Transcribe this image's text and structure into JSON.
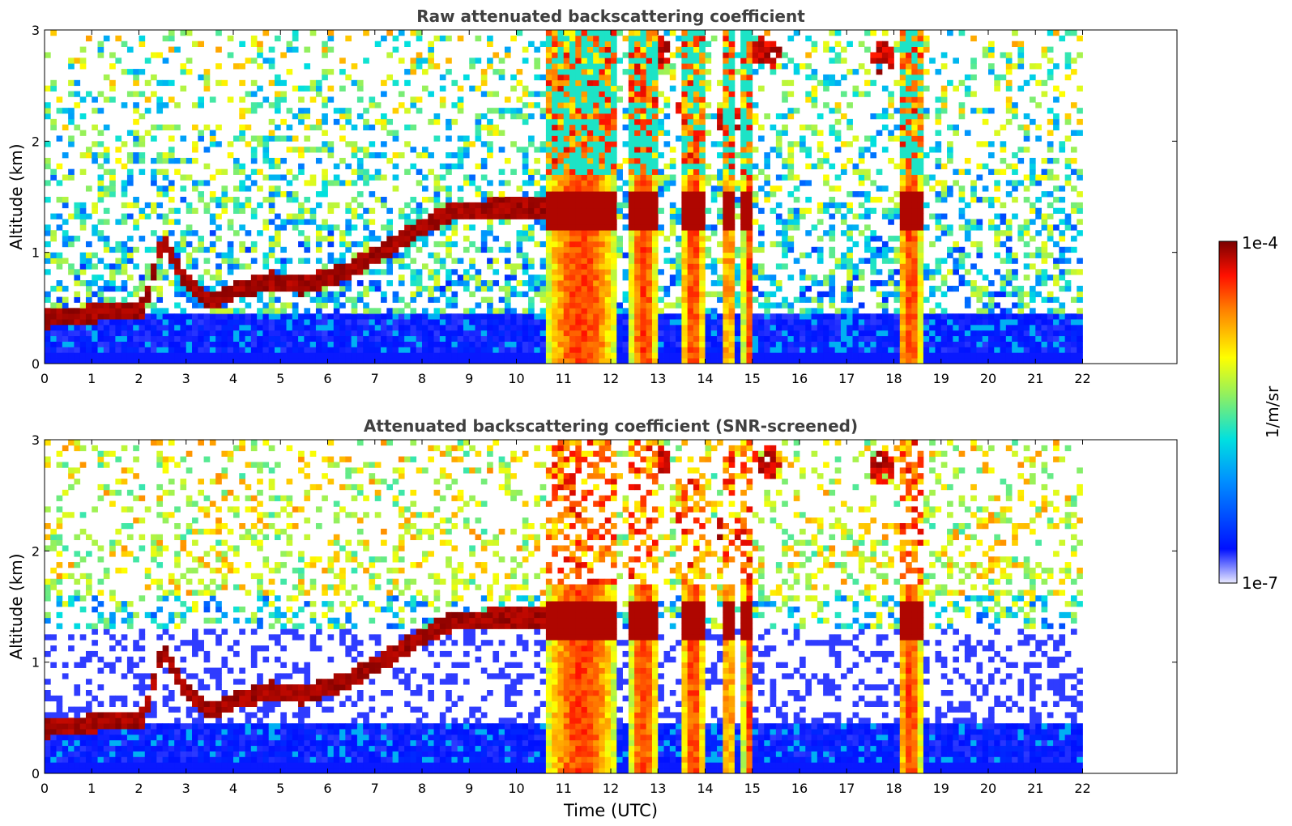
{
  "chart_data": [
    {
      "type": "heatmap",
      "title": "Raw attenuated backscattering coefficient",
      "xlabel": "",
      "ylabel": "Altitude (km)",
      "xlim": [
        0,
        24
      ],
      "ylim": [
        0,
        3
      ],
      "x_ticks": [
        "0",
        "1",
        "2",
        "3",
        "4",
        "5",
        "6",
        "7",
        "8",
        "9",
        "10",
        "11",
        "12",
        "13",
        "14",
        "15",
        "16",
        "17",
        "18",
        "19",
        "20",
        "21",
        "22"
      ],
      "y_ticks": [
        "0",
        "1",
        "2",
        "3"
      ],
      "data_end_time": 22,
      "features": {
        "boundary_layer_top_km": [
          [
            0.0,
            0.4
          ],
          [
            1.0,
            0.45
          ],
          [
            2.1,
            0.5
          ],
          [
            2.5,
            1.1
          ],
          [
            3.0,
            0.75
          ],
          [
            3.5,
            0.55
          ],
          [
            4.0,
            0.65
          ],
          [
            4.8,
            0.75
          ],
          [
            5.5,
            0.7
          ],
          [
            6.5,
            0.85
          ],
          [
            7.5,
            1.1
          ],
          [
            8.5,
            1.35
          ],
          [
            9.5,
            1.4
          ],
          [
            10.6,
            1.4
          ]
        ],
        "thick_cloud_intervals_utc": [
          [
            10.6,
            12.15
          ],
          [
            12.4,
            13.0
          ],
          [
            13.5,
            14.0
          ],
          [
            14.4,
            14.6
          ],
          [
            14.8,
            15.05
          ],
          [
            18.1,
            18.6
          ]
        ],
        "cirrus_patches": [
          [
            13.0,
            2.8
          ],
          [
            13.7,
            2.3
          ],
          [
            14.5,
            2.2
          ],
          [
            15.3,
            2.8
          ],
          [
            17.75,
            2.75
          ],
          [
            18.4,
            1.9
          ]
        ]
      }
    },
    {
      "type": "heatmap",
      "title": "Attenuated backscattering coefficient (SNR-screened)",
      "xlabel": "Time (UTC)",
      "ylabel": "Altitude (km)",
      "xlim": [
        0,
        24
      ],
      "ylim": [
        0,
        3
      ],
      "x_ticks": [
        "0",
        "1",
        "2",
        "3",
        "4",
        "5",
        "6",
        "7",
        "8",
        "9",
        "10",
        "11",
        "12",
        "13",
        "14",
        "15",
        "16",
        "17",
        "18",
        "19",
        "20",
        "21",
        "22"
      ],
      "y_ticks": [
        "0",
        "1",
        "2",
        "3"
      ],
      "data_end_time": 22,
      "screened": true
    }
  ],
  "colorbar": {
    "label": "1/m/sr",
    "max_label": "1e-4",
    "min_label": "1e-7",
    "scale": "log",
    "colormap": [
      "#eaeaff",
      "#0010ff",
      "#0090ff",
      "#00e0e0",
      "#90f060",
      "#ffff00",
      "#ff8000",
      "#ff1000",
      "#7a0000"
    ]
  }
}
